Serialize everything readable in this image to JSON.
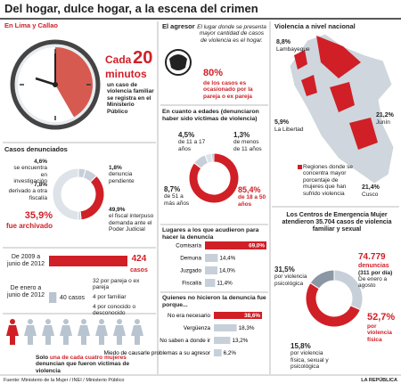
{
  "title": "Del hogar, dulce hogar, a la escena del crimen",
  "lima": {
    "heading": "En Lima y Callao",
    "lead": "Cada",
    "number": "20",
    "unit": "minutos",
    "text": "un caso de violencia familiar se registra en el Ministerio Público"
  },
  "casos": {
    "heading": "Casos denunciados",
    "segments": [
      {
        "value": 4.6,
        "value_label": "4,6%",
        "label": "se encuentra en investigación"
      },
      {
        "value": 7.8,
        "value_label": "7,8%",
        "label": "derivado a otra fiscalía"
      },
      {
        "value": 35.9,
        "value_label": "35,9%",
        "label": "fue archivado"
      },
      {
        "value": 1.8,
        "value_label": "1,8%",
        "label": "denuncia pendiente"
      },
      {
        "value": 49.9,
        "value_label": "49,9%",
        "label": "el fiscal interpuso demanda ante el Poder Judicial"
      }
    ]
  },
  "periodos": {
    "bars": [
      {
        "label": "De 2009 a junio de 2012",
        "value": 424,
        "unit": "casos"
      },
      {
        "label": "De enero a junio de 2012",
        "value": 40,
        "unit": "casos"
      }
    ],
    "breakdown": [
      "32 por pareja o ex pareja",
      "4 por familiar",
      "4 por conocido o desconocido"
    ]
  },
  "mujeres": {
    "pre": "Solo",
    "highlight": "una de cada cuatro mujeres",
    "post": "denuncian que fueron víctimas de violencia"
  },
  "agresor": {
    "heading": "El agresor",
    "note": "El lugar donde se presenta mayor cantidad de casos de violencia es el hogar.",
    "value_label": "80%",
    "text": "de los casos es ocasionado por la pareja o ex pareja"
  },
  "edades": {
    "heading": "En cuanto a edades (denunciaron haber sido víctimas de violencia)",
    "segments": [
      {
        "value": 85.4,
        "value_label": "85,4%",
        "label": "de 18 a 50 años"
      },
      {
        "value": 8.7,
        "value_label": "8,7%",
        "label": "de 51 a más años"
      },
      {
        "value": 4.5,
        "value_label": "4,5%",
        "label": "de 11 a 17 años"
      },
      {
        "value": 1.3,
        "value_label": "1,3%",
        "label": "de menos de 11 años"
      }
    ]
  },
  "lugares": {
    "heading": "Lugares a los que acudieron para hacer la denuncia",
    "rows": [
      {
        "label": "Comisaría",
        "value": 69.0,
        "value_label": "69,0%"
      },
      {
        "label": "Demuna",
        "value": 14.4,
        "value_label": "14,4%"
      },
      {
        "label": "Juzgado",
        "value": 14.0,
        "value_label": "14,0%"
      },
      {
        "label": "Fiscalía",
        "value": 11.4,
        "value_label": "11,4%"
      }
    ]
  },
  "motivos": {
    "heading": "Quienes no hicieron la denuncia fue porque...",
    "rows": [
      {
        "label": "No era necesario",
        "value": 38.6,
        "value_label": "38,6%"
      },
      {
        "label": "Vergüenza",
        "value": 18.3,
        "value_label": "18,3%"
      },
      {
        "label": "No saben a donde ir",
        "value": 13.2,
        "value_label": "13,2%"
      },
      {
        "label": "Miedo de causarle problemas a su agresor",
        "value": 6.2,
        "value_label": "6,2%"
      }
    ]
  },
  "nacional": {
    "heading": "Violencia a nivel nacional",
    "regions": [
      {
        "value_label": "8,8%",
        "name": "Lambayeque"
      },
      {
        "value_label": "21,2%",
        "name": "Junín"
      },
      {
        "value_label": "5,9%",
        "name": "La Libertad"
      },
      {
        "value_label": "21,4%",
        "name": "Cusco"
      }
    ],
    "legend": "Regiones donde se concentra mayor porcentaje de mujeres que han sufrido violencia"
  },
  "cem": {
    "pre": "Los Centros de Emergencia Mujer atendieron",
    "number": "35.704",
    "post": "casos de violencia familiar y sexual"
  },
  "denuncias": {
    "total": "74.779",
    "unit": "denuncias",
    "per_day": "(311 por día)",
    "period": "De enero a agosto",
    "segments": [
      {
        "value": 31.5,
        "value_label": "31,5%",
        "label": "por violencia psicológica"
      },
      {
        "value": 52.7,
        "value_label": "52,7%",
        "label": "por violencia física"
      },
      {
        "value": 15.8,
        "value_label": "15,8%",
        "label": "por violencia física, sexual y psicológica"
      }
    ]
  },
  "footer": {
    "source": "Fuente: Ministerio de la Mujer / INEI / Ministerio Público",
    "brand": "LA REPÚBLICA"
  }
}
